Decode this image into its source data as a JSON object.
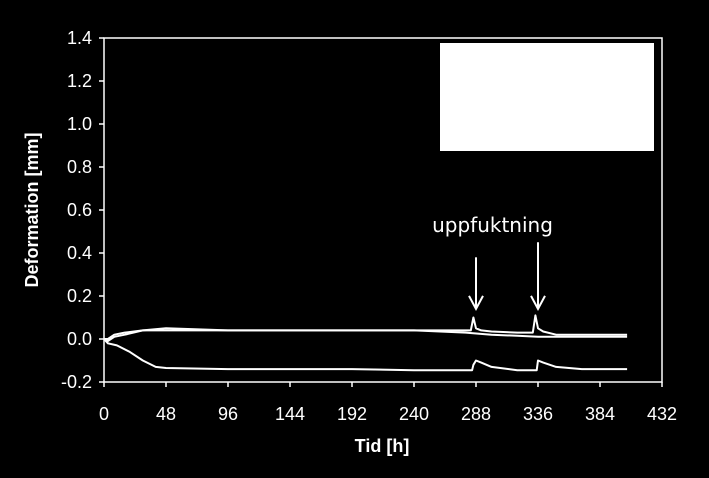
{
  "chart_data": {
    "type": "line",
    "title": "",
    "xlabel": "Tid [h]",
    "ylabel": "Deformation [mm]",
    "xlim": [
      0,
      432
    ],
    "ylim": [
      -0.2,
      1.4
    ],
    "xticks": [
      0,
      48,
      96,
      144,
      192,
      240,
      288,
      336,
      384,
      432
    ],
    "yticks": [
      -0.2,
      0.0,
      0.2,
      0.4,
      0.6,
      0.8,
      1.0,
      1.2,
      1.4
    ],
    "xtick_labels": [
      "0",
      "48",
      "96",
      "144",
      "192",
      "240",
      "288",
      "336",
      "384",
      "432"
    ],
    "ytick_labels": [
      "-0.2",
      "0.0",
      "0.2",
      "0.4",
      "0.6",
      "0.8",
      "1.0",
      "1.2",
      "1.4"
    ],
    "grid": false,
    "background": "#000000",
    "line_color": "#ffffff",
    "legend": {
      "placement": "top-right",
      "entries": []
    },
    "series": [
      {
        "x": [
          0,
          3,
          8,
          16,
          30,
          48,
          96,
          144,
          192,
          240,
          284,
          286,
          288,
          292,
          300,
          320,
          332,
          334,
          336,
          340,
          350,
          370,
          405
        ],
        "y": [
          0,
          0.0,
          0.02,
          0.03,
          0.04,
          0.04,
          0.04,
          0.04,
          0.04,
          0.04,
          0.04,
          0.1,
          0.05,
          0.04,
          0.035,
          0.03,
          0.03,
          0.11,
          0.05,
          0.035,
          0.02,
          0.02,
          0.02
        ]
      },
      {
        "x": [
          0,
          3,
          8,
          16,
          30,
          48,
          96,
          144,
          192,
          240,
          280,
          300,
          320,
          336,
          360,
          405
        ],
        "y": [
          0,
          -0.01,
          0.01,
          0.02,
          0.04,
          0.05,
          0.04,
          0.04,
          0.04,
          0.04,
          0.03,
          0.02,
          0.015,
          0.01,
          0.01,
          0.01
        ]
      },
      {
        "x": [
          0,
          3,
          10,
          20,
          30,
          40,
          48,
          96,
          144,
          192,
          240,
          285,
          286,
          288,
          292,
          300,
          320,
          335,
          336,
          340,
          350,
          370,
          405
        ],
        "y": [
          0,
          -0.02,
          -0.03,
          -0.06,
          -0.1,
          -0.13,
          -0.135,
          -0.14,
          -0.14,
          -0.14,
          -0.145,
          -0.145,
          -0.12,
          -0.1,
          -0.11,
          -0.13,
          -0.145,
          -0.145,
          -0.1,
          -0.11,
          -0.13,
          -0.14,
          -0.14
        ]
      }
    ],
    "annotations": [
      {
        "text": "uppfuktning",
        "x": 300,
        "y": 0.53
      },
      {
        "arrow_to": [
          288,
          0.14
        ]
      },
      {
        "arrow_to": [
          336,
          0.14
        ]
      }
    ]
  }
}
